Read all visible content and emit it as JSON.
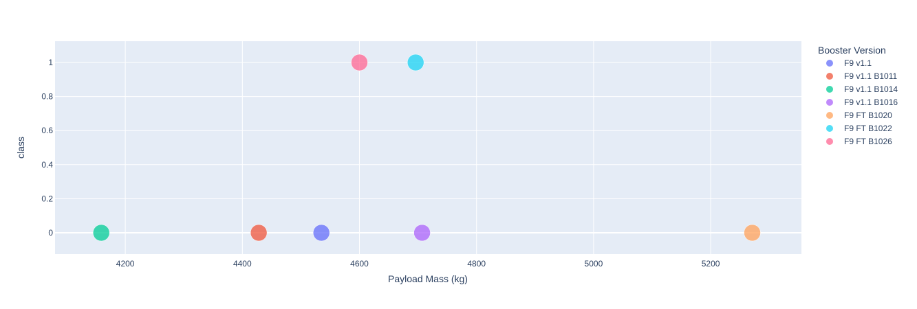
{
  "chart_data": {
    "type": "scatter",
    "xlabel": "Payload Mass (kg)",
    "ylabel": "class",
    "xlim": [
      4080,
      5355
    ],
    "ylim": [
      -0.125,
      1.125
    ],
    "x_ticks": [
      4200,
      4400,
      4600,
      4800,
      5000,
      5200
    ],
    "y_ticks": [
      0,
      0.2,
      0.4,
      0.6,
      0.8,
      1
    ],
    "y_tick_labels": [
      "0",
      "0.2",
      "0.4",
      "0.6",
      "0.8",
      "1"
    ],
    "grid": true,
    "plot_background": "#e5ecf6",
    "legend": {
      "title": "Booster Version",
      "placement": "right"
    },
    "series": [
      {
        "name": "F9 v1.1",
        "color": "#636efa",
        "points": [
          {
            "x": 4535,
            "y": 0
          }
        ]
      },
      {
        "name": "F9 v1.1 B1011",
        "color": "#ef553b",
        "points": [
          {
            "x": 4428,
            "y": 0
          }
        ]
      },
      {
        "name": "F9 v1.1 B1014",
        "color": "#00cc96",
        "points": [
          {
            "x": 4159,
            "y": 0
          }
        ]
      },
      {
        "name": "F9 v1.1 B1016",
        "color": "#ab63fa",
        "points": [
          {
            "x": 4707,
            "y": 0
          }
        ]
      },
      {
        "name": "F9 FT B1020",
        "color": "#ffa15a",
        "points": [
          {
            "x": 5271,
            "y": 0
          }
        ]
      },
      {
        "name": "F9 FT B1022",
        "color": "#19d3f3",
        "points": [
          {
            "x": 4696,
            "y": 1
          }
        ]
      },
      {
        "name": "F9 FT B1026",
        "color": "#ff6692",
        "points": [
          {
            "x": 4600,
            "y": 1
          }
        ]
      }
    ]
  }
}
